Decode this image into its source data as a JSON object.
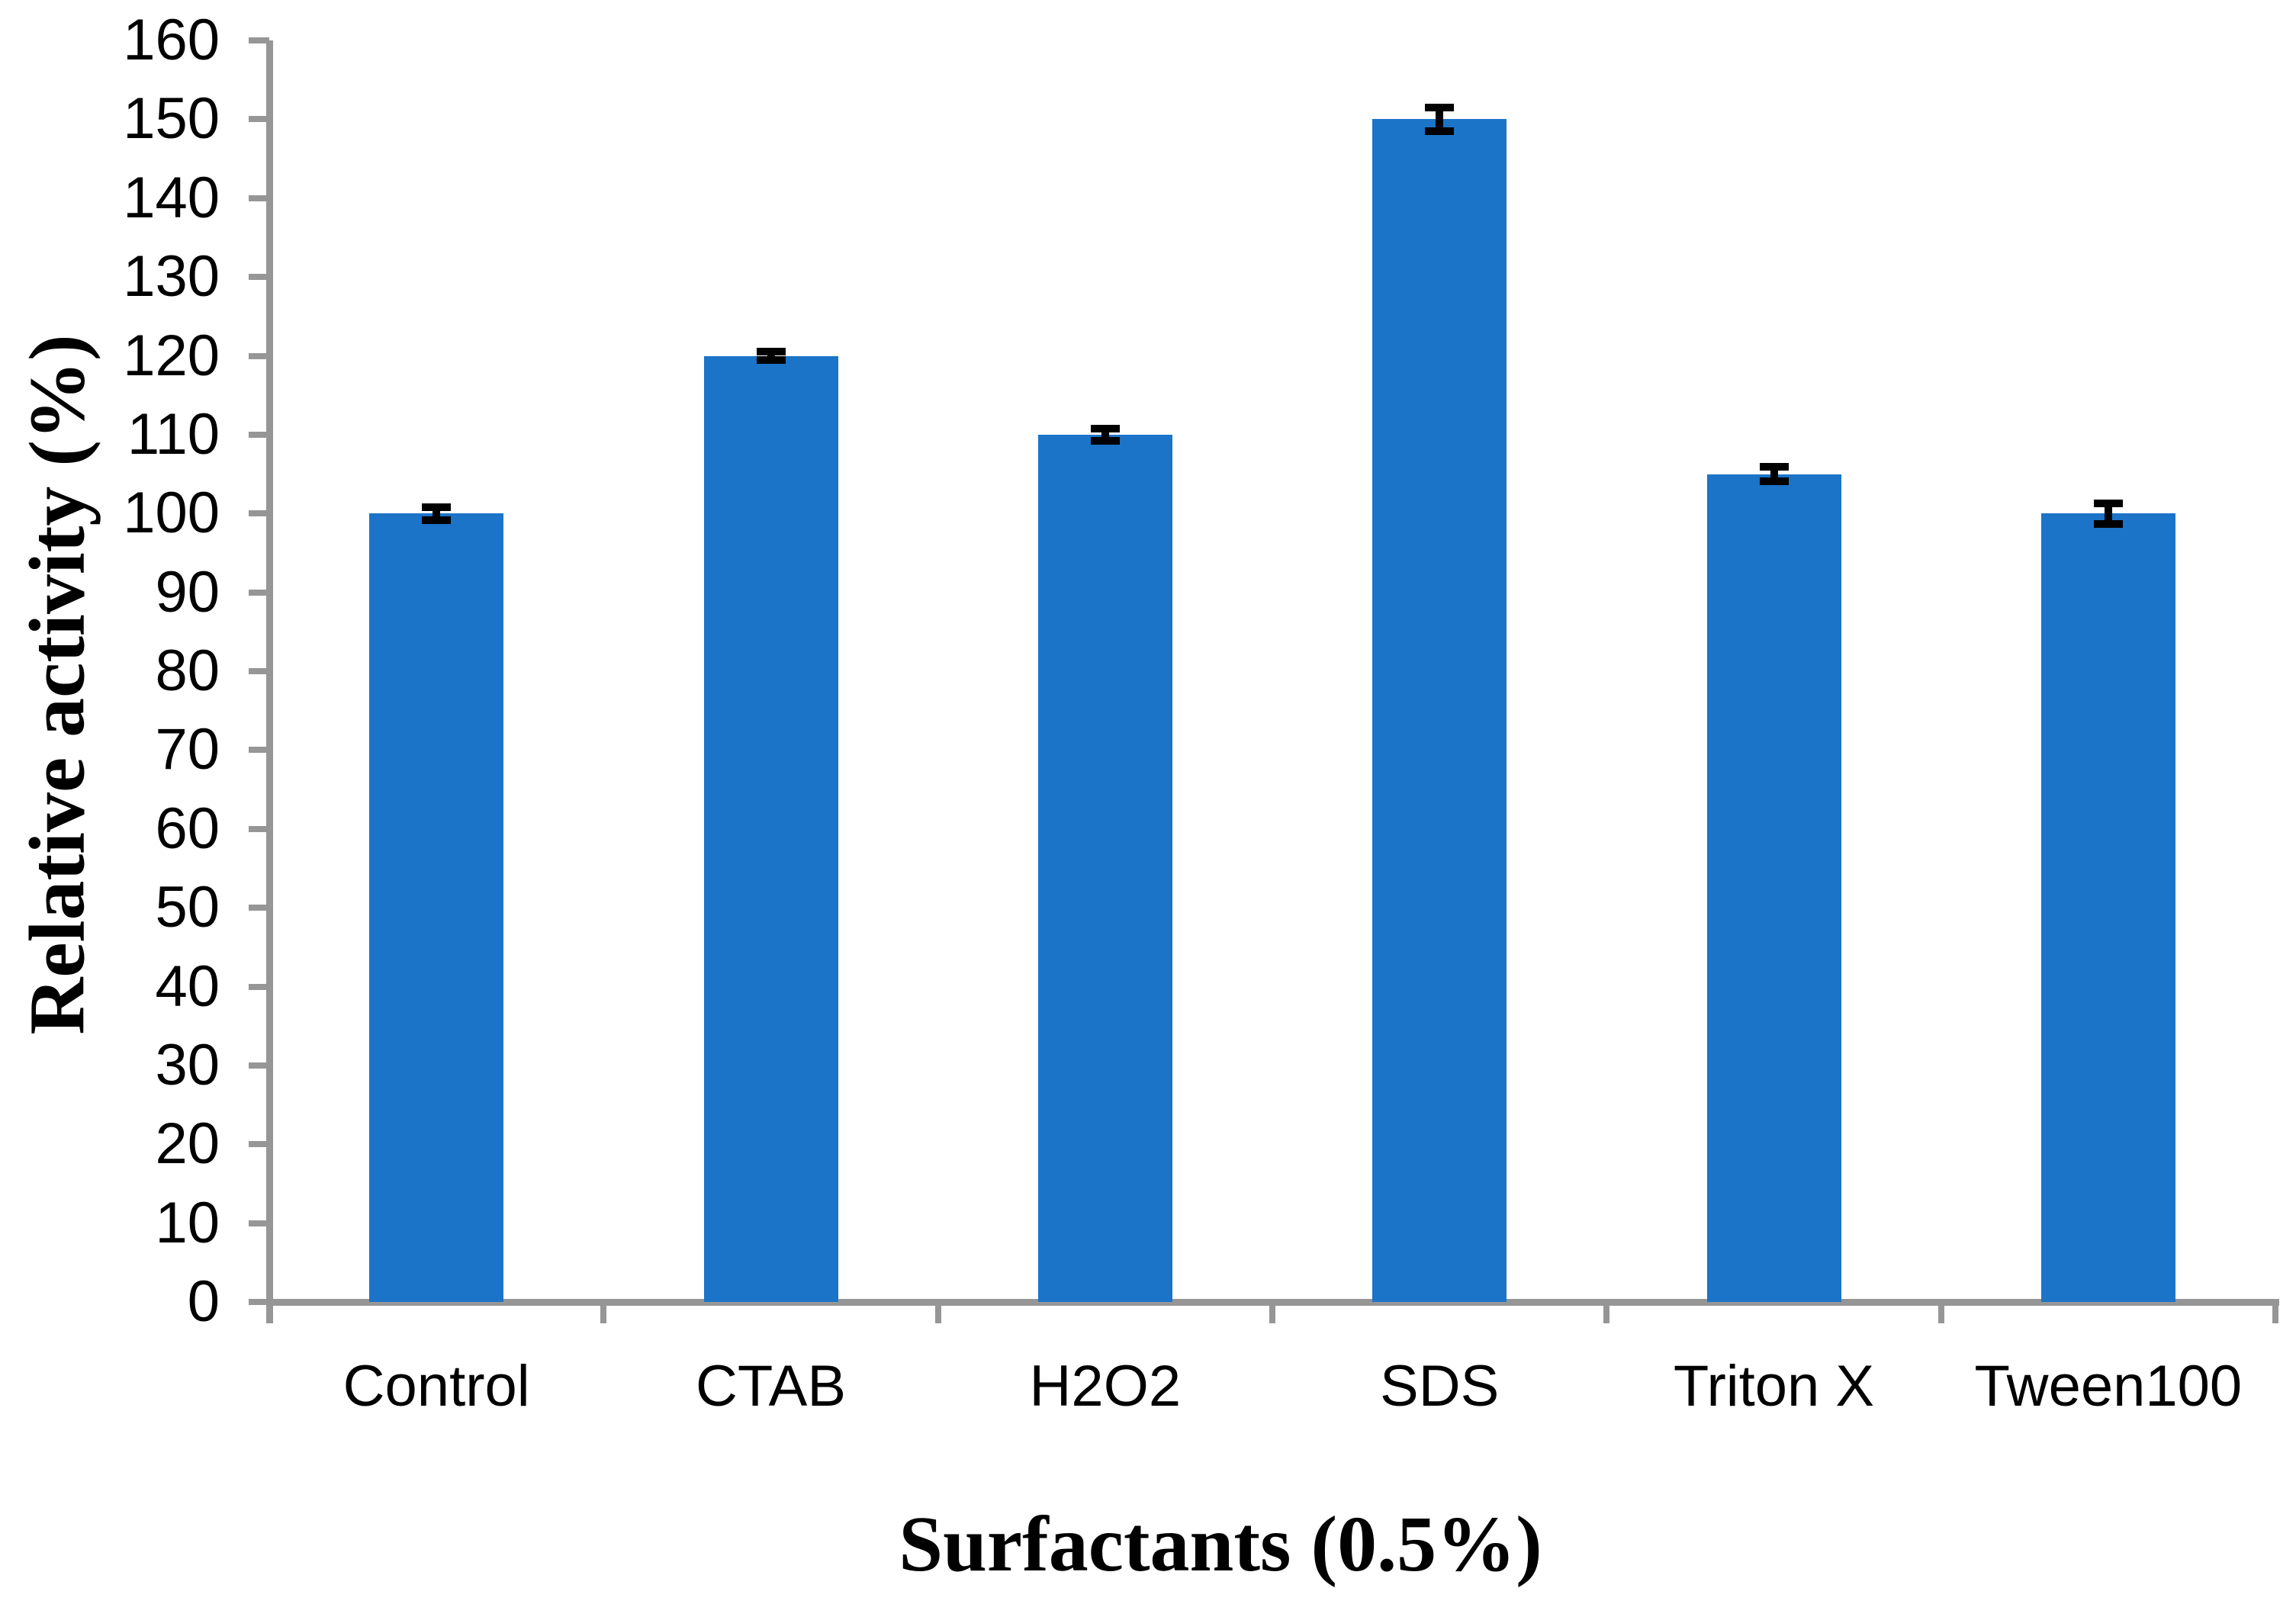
{
  "chart_data": {
    "type": "bar",
    "title": "",
    "xlabel": "Surfactants (0.5%)",
    "ylabel": "Relative activity (%)",
    "categories": [
      "Control",
      "CTAB",
      "H2O2",
      "SDS",
      "Triton X",
      "Tween100"
    ],
    "values": [
      100,
      120,
      110,
      150,
      105,
      100
    ],
    "errors": [
      0.8,
      0.5,
      0.8,
      1.5,
      0.9,
      1.3
    ],
    "ylim": [
      0,
      160
    ],
    "ytick_step": 10,
    "ytick_labels": [
      "0",
      "10",
      "20",
      "30",
      "40",
      "50",
      "60",
      "70",
      "80",
      "90",
      "100",
      "110",
      "120",
      "130",
      "140",
      "150",
      "160"
    ],
    "grid": false,
    "legend": false,
    "bar_color": "#1B74C8",
    "axis_color": "#969696",
    "error_bar_color": "#000000",
    "text_color": "#000000"
  }
}
